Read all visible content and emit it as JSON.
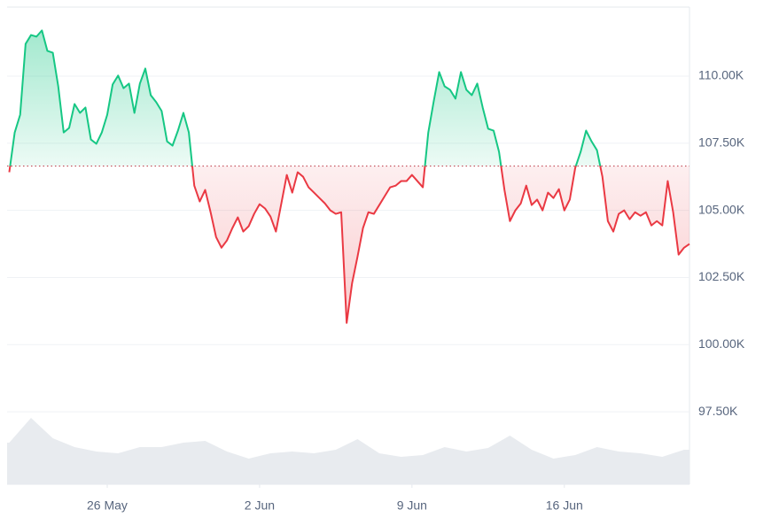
{
  "chart_data": {
    "type": "baseline-line",
    "baseline": 106650,
    "color_up": "#16c784",
    "color_down": "#ea3943",
    "volume_color": "#e8ebef",
    "grid": true,
    "xlim": [
      21.4,
      52.75
    ],
    "xticks": [
      {
        "value": 26,
        "label": "26 May"
      },
      {
        "value": 33,
        "label": "2 Jun"
      },
      {
        "value": 40,
        "label": "9 Jun"
      },
      {
        "value": 47,
        "label": "16 Jun"
      }
    ],
    "ylim": [
      94800,
      112570
    ],
    "yticks": [
      {
        "value": 97500,
        "label": "97.50K"
      },
      {
        "value": 100000,
        "label": "100.00K"
      },
      {
        "value": 102500,
        "label": "102.50K"
      },
      {
        "value": 105000,
        "label": "105.00K"
      },
      {
        "value": 107500,
        "label": "107.50K"
      },
      {
        "value": 110000,
        "label": "110.00K"
      }
    ],
    "x": [
      21.5,
      21.75,
      22,
      22.25,
      22.5,
      22.75,
      23,
      23.25,
      23.5,
      23.75,
      24,
      24.25,
      24.5,
      24.75,
      25,
      25.25,
      25.5,
      25.75,
      26,
      26.25,
      26.5,
      26.75,
      27,
      27.25,
      27.5,
      27.75,
      28,
      28.25,
      28.5,
      28.75,
      29,
      29.25,
      29.5,
      29.75,
      30,
      30.25,
      30.5,
      30.75,
      31,
      31.25,
      31.5,
      31.75,
      32,
      32.25,
      32.5,
      32.75,
      33,
      33.25,
      33.5,
      33.75,
      34,
      34.25,
      34.5,
      34.75,
      35,
      35.25,
      35.5,
      35.75,
      36,
      36.25,
      36.5,
      36.75,
      37,
      37.25,
      37.5,
      37.75,
      38,
      38.25,
      38.5,
      38.75,
      39,
      39.25,
      39.5,
      39.75,
      40,
      40.25,
      40.5,
      40.75,
      41,
      41.25,
      41.5,
      41.75,
      42,
      42.25,
      42.5,
      42.75,
      43,
      43.25,
      43.5,
      43.75,
      44,
      44.25,
      44.5,
      44.75,
      45,
      45.25,
      45.5,
      45.75,
      46,
      46.25,
      46.5,
      46.75,
      47,
      47.25,
      47.5,
      47.75,
      48,
      48.25,
      48.5,
      48.75,
      49,
      49.25,
      49.5,
      49.75,
      50,
      50.25,
      50.5,
      50.75,
      51,
      51.25,
      51.5,
      51.75,
      52,
      52.25,
      52.5,
      52.75
    ],
    "values": [
      106420,
      107900,
      108560,
      111200,
      111530,
      111470,
      111700,
      110940,
      110870,
      109620,
      107900,
      108070,
      108960,
      108630,
      108830,
      107640,
      107480,
      107900,
      108560,
      109690,
      110020,
      109550,
      109720,
      108630,
      109720,
      110280,
      109290,
      109030,
      108700,
      107570,
      107410,
      107970,
      108630,
      107900,
      105920,
      105330,
      105760,
      104930,
      104010,
      103610,
      103880,
      104340,
      104740,
      104210,
      104410,
      104870,
      105230,
      105070,
      104770,
      104210,
      105260,
      106320,
      105660,
      106420,
      106250,
      105860,
      105660,
      105460,
      105260,
      105000,
      104870,
      104930,
      100810,
      102290,
      103280,
      104340,
      104930,
      104870,
      105200,
      105530,
      105860,
      105920,
      106090,
      106090,
      106320,
      106090,
      105860,
      107900,
      109060,
      110150,
      109620,
      109490,
      109160,
      110150,
      109490,
      109290,
      109720,
      108830,
      108040,
      107970,
      107180,
      105760,
      104600,
      105000,
      105260,
      105920,
      105200,
      105400,
      105000,
      105660,
      105460,
      105790,
      105000,
      105400,
      106580,
      107180,
      107970,
      107570,
      107240,
      106250,
      104600,
      104210,
      104870,
      105000,
      104670,
      104930,
      104800,
      104930,
      104440,
      104600,
      104440,
      106090,
      104930,
      103350,
      103610,
      103750
    ],
    "volume": {
      "x": [
        21.5,
        22.5,
        23.5,
        24.5,
        25.5,
        26.5,
        27.5,
        28.5,
        29.5,
        30.5,
        31.5,
        32.5,
        33.5,
        34.5,
        35.5,
        36.5,
        37.5,
        38.5,
        39.5,
        40.5,
        41.5,
        42.5,
        43.5,
        44.5,
        45.5,
        46.5,
        47.5,
        48.5,
        49.5,
        50.5,
        51.5,
        52.5
      ],
      "values": [
        47,
        75,
        52,
        42,
        37,
        35,
        42,
        42,
        47,
        49,
        37,
        29,
        35,
        37,
        35,
        39,
        51,
        35,
        31,
        33,
        42,
        37,
        41,
        55,
        39,
        29,
        33,
        42,
        37,
        35,
        31,
        39
      ]
    }
  }
}
